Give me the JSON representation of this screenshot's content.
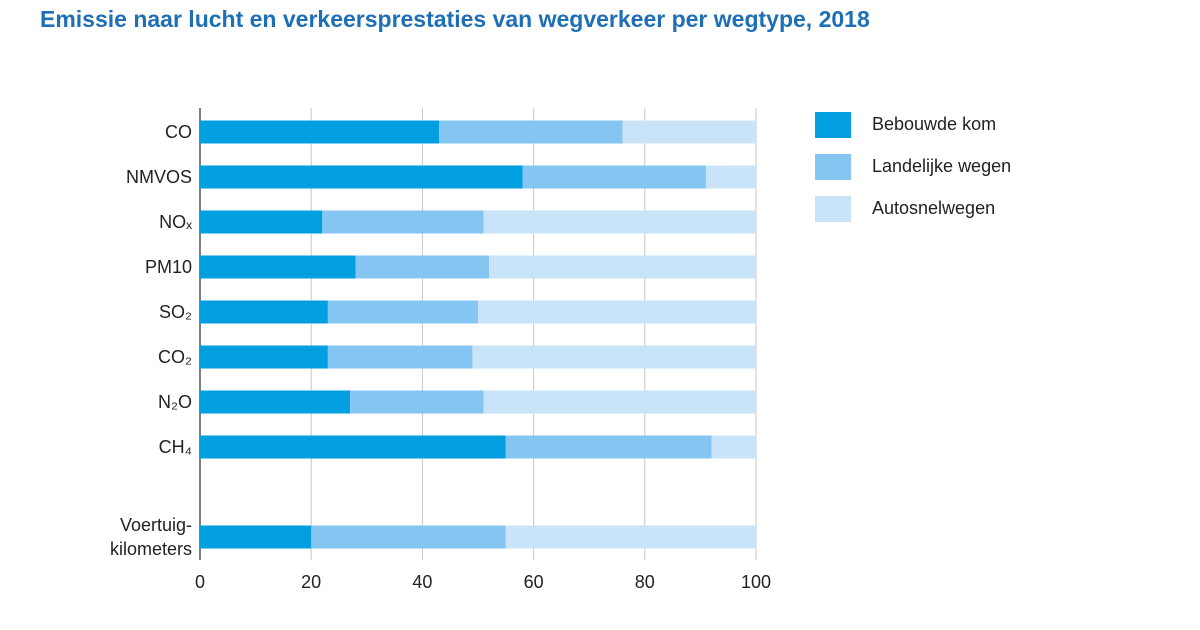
{
  "chart_data": {
    "type": "stacked-bar-horizontal",
    "title": "Emissie naar lucht en verkeersprestaties van wegverkeer per wegtype, 2018",
    "categories": [
      "CO",
      "NMVOS",
      "NOₓ",
      "PM10",
      "SO₂",
      "CO₂",
      "N₂O",
      "CH₄",
      null,
      "Voertuig-\nkilometers"
    ],
    "series": [
      {
        "name": "Bebouwde kom",
        "color": "#019fe0",
        "values": [
          43,
          58,
          22,
          28,
          23,
          23,
          27,
          55,
          null,
          20
        ]
      },
      {
        "name": "Landelijke wegen",
        "color": "#85c5f1",
        "values": [
          33,
          33,
          29,
          24,
          27,
          26,
          24,
          37,
          null,
          35
        ]
      },
      {
        "name": "Autosnelwegen",
        "color": "#c9e4f9",
        "values": [
          24,
          9,
          49,
          48,
          50,
          51,
          49,
          8,
          null,
          45
        ]
      }
    ],
    "xlim": [
      0,
      100
    ],
    "xticks": [
      0,
      20,
      40,
      60,
      80,
      100
    ],
    "grid": true,
    "legend": "right"
  }
}
